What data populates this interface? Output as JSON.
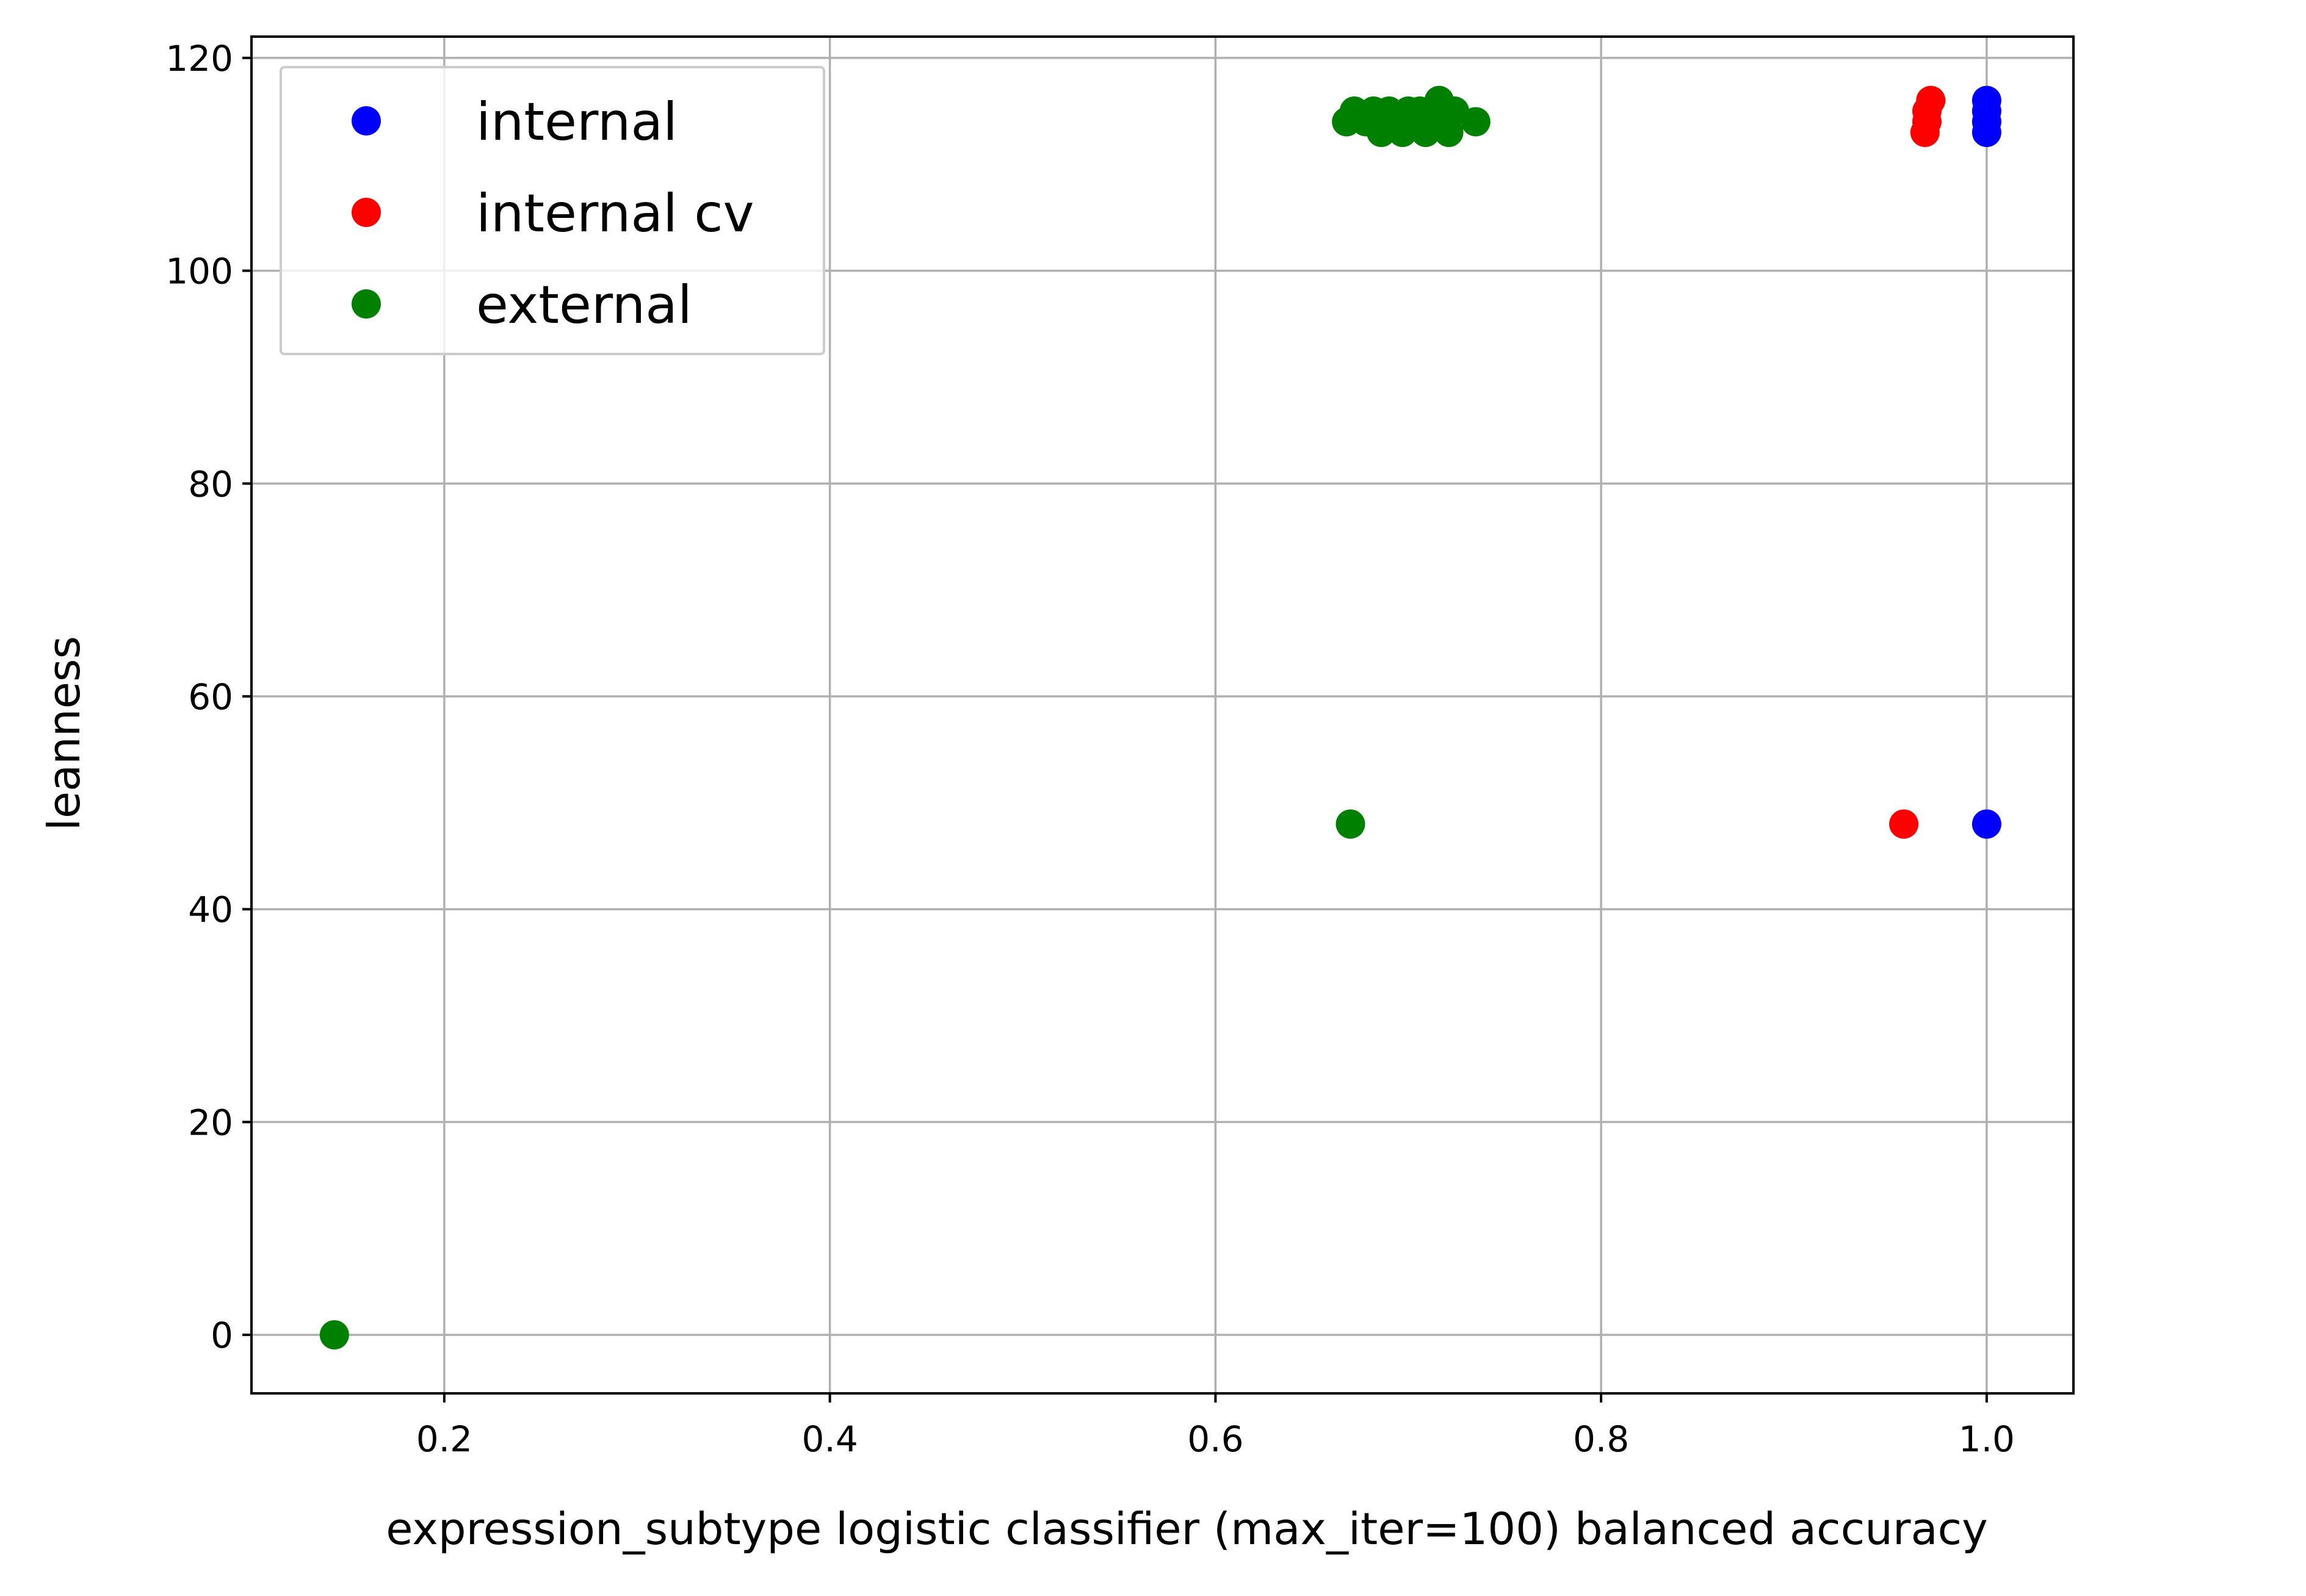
{
  "chart_data": {
    "type": "scatter",
    "xlabel": "expression_subtype logistic classifier (max_iter=100) balanced accuracy",
    "ylabel": "leanness",
    "xlim": [
      0.1,
      1.045
    ],
    "ylim": [
      -5.5,
      122
    ],
    "xticks": [
      0.2,
      0.4,
      0.6,
      0.8,
      1.0
    ],
    "xtick_labels": [
      "0.2",
      "0.4",
      "0.6",
      "0.8",
      "1.0"
    ],
    "yticks": [
      0,
      20,
      40,
      60,
      80,
      100,
      120
    ],
    "ytick_labels": [
      "0",
      "20",
      "40",
      "60",
      "80",
      "100",
      "120"
    ],
    "grid": true,
    "legend_position": "top-left",
    "series": [
      {
        "name": "internal",
        "color": "#0000ff",
        "points": [
          [
            1.0,
            116
          ],
          [
            1.0,
            115
          ],
          [
            1.0,
            114
          ],
          [
            1.0,
            113
          ],
          [
            1.0,
            48
          ]
        ]
      },
      {
        "name": "internal cv",
        "color": "#ff0000",
        "points": [
          [
            0.971,
            116
          ],
          [
            0.969,
            115
          ],
          [
            0.969,
            114
          ],
          [
            0.968,
            113
          ],
          [
            0.957,
            48
          ]
        ]
      },
      {
        "name": "external",
        "color": "#008000",
        "points": [
          [
            0.668,
            114
          ],
          [
            0.672,
            115
          ],
          [
            0.678,
            114
          ],
          [
            0.682,
            115
          ],
          [
            0.686,
            113
          ],
          [
            0.69,
            115
          ],
          [
            0.694,
            114
          ],
          [
            0.697,
            113
          ],
          [
            0.7,
            115
          ],
          [
            0.703,
            114
          ],
          [
            0.706,
            115
          ],
          [
            0.709,
            113
          ],
          [
            0.712,
            114
          ],
          [
            0.714,
            115
          ],
          [
            0.716,
            116
          ],
          [
            0.719,
            114
          ],
          [
            0.721,
            113
          ],
          [
            0.724,
            115
          ],
          [
            0.735,
            114
          ],
          [
            0.67,
            48
          ],
          [
            0.143,
            0
          ]
        ]
      }
    ]
  }
}
